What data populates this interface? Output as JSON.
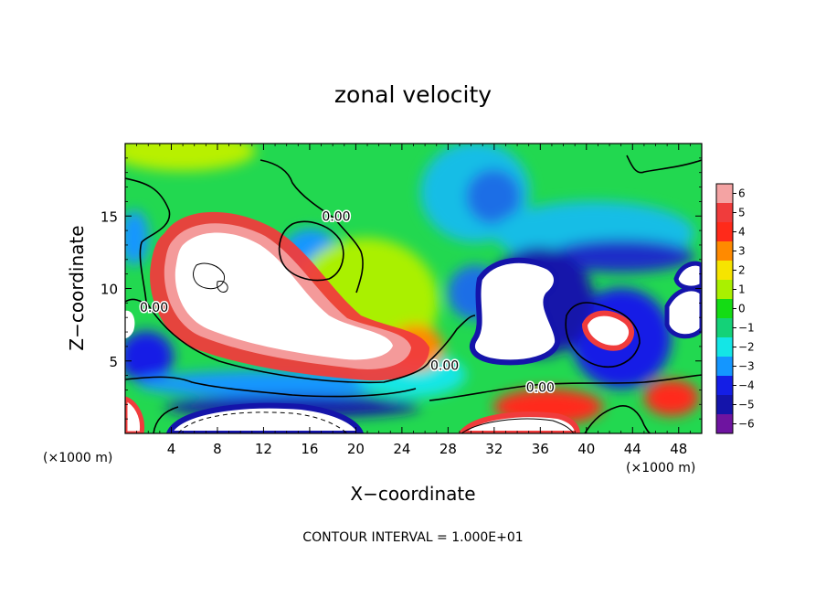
{
  "chart_data": {
    "type": "heatmap",
    "title": "zonal velocity",
    "xlabel": "X−coordinate",
    "ylabel": "Z−coordinate",
    "x_unit": "(×1000 m)",
    "y_unit": "(×1000 m)",
    "xlim": [
      0,
      50
    ],
    "ylim": [
      0,
      20
    ],
    "x_ticks": [
      4,
      8,
      12,
      16,
      20,
      24,
      28,
      32,
      36,
      40,
      44,
      48
    ],
    "x_tick_labels": [
      "4",
      "8",
      "12",
      "16",
      "20",
      "24",
      "28",
      "32",
      "36",
      "40",
      "44",
      "48"
    ],
    "y_ticks": [
      5,
      10,
      15
    ],
    "y_tick_labels": [
      "5",
      "10",
      "15"
    ],
    "colorbar_levels": [
      6,
      5,
      4,
      3,
      2,
      1,
      0,
      -1,
      -2,
      -3,
      -4,
      -5,
      -6
    ],
    "colorbar_labels": [
      "6",
      "5",
      "4",
      "3",
      "2",
      "1",
      "0",
      "−1",
      "−2",
      "−3",
      "−4",
      "−5",
      "−6"
    ],
    "colorbar_colors": [
      "#f4a3a3",
      "#f03c3c",
      "#ff2a1a",
      "#ff8a00",
      "#f6e400",
      "#aaf000",
      "#14dc14",
      "#14d278",
      "#14e6e6",
      "#1496ff",
      "#141ee6",
      "#1414aa",
      "#6e14a0"
    ],
    "contour_labels": [
      {
        "text": "0.00",
        "x": 18.3,
        "y": 15.0
      },
      {
        "text": "0.00",
        "x": 2.5,
        "y": 8.7
      },
      {
        "text": "0.00",
        "x": 27.7,
        "y": 4.7
      },
      {
        "text": "0.00",
        "x": 36.0,
        "y": 3.2
      }
    ],
    "contour_interval_note": "CONTOUR INTERVAL = 1.000E+01",
    "grid": false
  }
}
